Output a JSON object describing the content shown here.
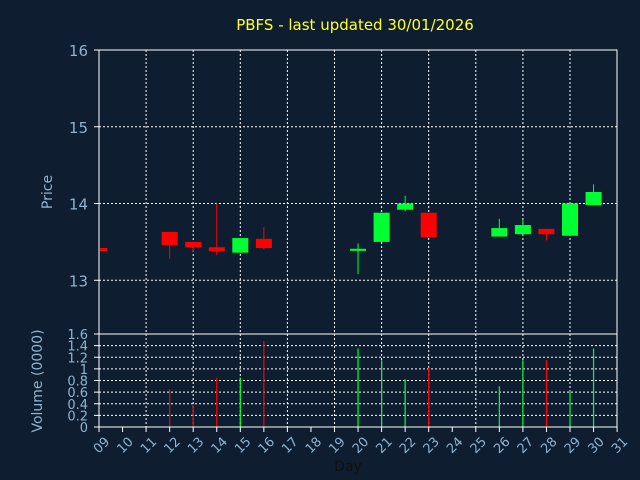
{
  "chart_data": {
    "type": "candlestick",
    "title": "PBFS - last updated 30/01/2026",
    "xlabel": "Day",
    "price_panel": {
      "ylabel": "Price",
      "ylim": [
        12.3,
        16.0
      ],
      "y_ticks": [
        "13",
        "14",
        "15",
        "16"
      ]
    },
    "volume_panel": {
      "ylabel": "Volume (0000)",
      "ylim": [
        0,
        1.6
      ],
      "y_ticks": [
        "0",
        "0.2",
        "0.4",
        "0.6",
        "0.8",
        "1",
        "1.2",
        "1.4",
        "1.6"
      ]
    },
    "x_ticks": [
      "09",
      "10",
      "11",
      "12",
      "13",
      "14",
      "15",
      "16",
      "17",
      "18",
      "19",
      "20",
      "21",
      "22",
      "23",
      "24",
      "25",
      "26",
      "27",
      "28",
      "29",
      "30",
      "31"
    ],
    "grid": true,
    "colors": {
      "up": "#00ff33",
      "down": "#ff0000",
      "background": "#0e1e30",
      "plot_border": "#ffffff",
      "grid": "#ffffff"
    },
    "candles": [
      {
        "day": 9,
        "open": 13.42,
        "high": 13.42,
        "low": 13.38,
        "close": 13.38,
        "volume": 0
      },
      {
        "day": 12,
        "open": 13.63,
        "high": 13.63,
        "low": 13.28,
        "close": 13.46,
        "volume": 0.65
      },
      {
        "day": 13,
        "open": 13.5,
        "high": 13.5,
        "low": 13.37,
        "close": 13.43,
        "volume": 0.38
      },
      {
        "day": 14,
        "open": 13.43,
        "high": 14.0,
        "low": 13.33,
        "close": 13.38,
        "volume": 0.85
      },
      {
        "day": 15,
        "open": 13.36,
        "high": 13.55,
        "low": 13.36,
        "close": 13.55,
        "volume": 0.85
      },
      {
        "day": 16,
        "open": 13.54,
        "high": 13.69,
        "low": 13.4,
        "close": 13.42,
        "volume": 1.48
      },
      {
        "day": 20,
        "open": 13.4,
        "high": 13.48,
        "low": 13.08,
        "close": 13.41,
        "volume": 1.35
      },
      {
        "day": 21,
        "open": 13.5,
        "high": 13.88,
        "low": 13.5,
        "close": 13.88,
        "volume": 1.15
      },
      {
        "day": 22,
        "open": 13.92,
        "high": 14.1,
        "low": 13.9,
        "close": 14.0,
        "volume": 0.82
      },
      {
        "day": 23,
        "open": 13.88,
        "high": 13.88,
        "low": 13.56,
        "close": 13.56,
        "volume": 1.02
      },
      {
        "day": 26,
        "open": 13.57,
        "high": 13.8,
        "low": 13.57,
        "close": 13.68,
        "volume": 0.7
      },
      {
        "day": 27,
        "open": 13.6,
        "high": 13.79,
        "low": 13.6,
        "close": 13.72,
        "volume": 1.15
      },
      {
        "day": 28,
        "open": 13.67,
        "high": 13.67,
        "low": 13.52,
        "close": 13.6,
        "volume": 1.15
      },
      {
        "day": 29,
        "open": 13.58,
        "high": 14.0,
        "low": 13.58,
        "close": 14.0,
        "volume": 0.62
      },
      {
        "day": 30,
        "open": 13.98,
        "high": 14.25,
        "low": 13.98,
        "close": 14.15,
        "volume": 1.35
      }
    ]
  }
}
